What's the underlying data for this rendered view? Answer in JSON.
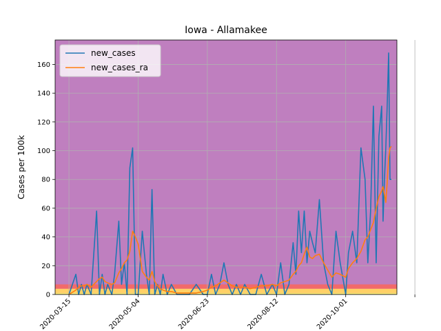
{
  "chart_data": {
    "type": "line",
    "title": "Iowa - Allamakee",
    "xlabel": "",
    "ylabel": "Cases per 100k",
    "xlim": [
      "2020-03-05",
      "2020-11-07"
    ],
    "ylim": [
      0,
      177
    ],
    "x_ticks": [
      "2020-03-15",
      "2020-05-04",
      "2020-06-23",
      "2020-08-12",
      "2020-10-01",
      ""
    ],
    "y_ticks": [
      0,
      20,
      40,
      60,
      80,
      100,
      120,
      140,
      160
    ],
    "grid": true,
    "legend_position": "top-left",
    "background_color": "#bf7fbf",
    "risk_bands": [
      {
        "from": 0,
        "to": 1,
        "color": "#ffef7a"
      },
      {
        "from": 1,
        "to": 4,
        "color": "#ffd166"
      },
      {
        "from": 4,
        "to": 7,
        "color": "#f26a6a"
      }
    ],
    "x": [
      "2020-03-15",
      "2020-03-20",
      "2020-03-22",
      "2020-03-24",
      "2020-03-26",
      "2020-03-28",
      "2020-03-31",
      "2020-04-04",
      "2020-04-06",
      "2020-04-08",
      "2020-04-10",
      "2020-04-12",
      "2020-04-15",
      "2020-04-17",
      "2020-04-20",
      "2020-04-22",
      "2020-04-24",
      "2020-04-26",
      "2020-04-28",
      "2020-04-30",
      "2020-05-02",
      "2020-05-04",
      "2020-05-07",
      "2020-05-10",
      "2020-05-12",
      "2020-05-14",
      "2020-05-16",
      "2020-05-18",
      "2020-05-20",
      "2020-05-22",
      "2020-05-25",
      "2020-05-28",
      "2020-06-01",
      "2020-06-05",
      "2020-06-10",
      "2020-06-15",
      "2020-06-20",
      "2020-06-23",
      "2020-06-26",
      "2020-06-29",
      "2020-07-02",
      "2020-07-05",
      "2020-07-08",
      "2020-07-11",
      "2020-07-14",
      "2020-07-17",
      "2020-07-20",
      "2020-07-24",
      "2020-07-28",
      "2020-08-01",
      "2020-08-05",
      "2020-08-09",
      "2020-08-12",
      "2020-08-15",
      "2020-08-18",
      "2020-08-21",
      "2020-08-24",
      "2020-08-26",
      "2020-08-28",
      "2020-08-30",
      "2020-09-01",
      "2020-09-03",
      "2020-09-05",
      "2020-09-07",
      "2020-09-09",
      "2020-09-12",
      "2020-09-15",
      "2020-09-18",
      "2020-09-21",
      "2020-09-24",
      "2020-09-27",
      "2020-10-01",
      "2020-10-03",
      "2020-10-06",
      "2020-10-09",
      "2020-10-12",
      "2020-10-15",
      "2020-10-17",
      "2020-10-19",
      "2020-10-21",
      "2020-10-23",
      "2020-10-25",
      "2020-10-27",
      "2020-10-28",
      "2020-10-29",
      "2020-10-30",
      "2020-10-31",
      "2020-11-01",
      "2020-11-02",
      "2020-11-03"
    ],
    "series": [
      {
        "name": "new_cases",
        "color": "#1f77b4",
        "values": [
          0,
          14,
          0,
          7,
          0,
          7,
          0,
          58,
          0,
          14,
          0,
          7,
          0,
          14,
          51,
          7,
          22,
          0,
          88,
          102,
          0,
          0,
          44,
          14,
          0,
          73,
          0,
          7,
          0,
          14,
          0,
          7,
          0,
          0,
          0,
          7,
          0,
          0,
          14,
          0,
          7,
          22,
          7,
          0,
          7,
          0,
          7,
          0,
          0,
          14,
          0,
          7,
          0,
          22,
          0,
          7,
          36,
          14,
          58,
          29,
          58,
          22,
          44,
          36,
          29,
          66,
          22,
          7,
          0,
          44,
          22,
          0,
          29,
          44,
          22,
          102,
          80,
          22,
          58,
          131,
          22,
          110,
          131,
          51,
          80,
          102,
          131,
          168,
          80,
          80
        ]
      },
      {
        "name": "new_cases_ra",
        "color": "#ff7f0e",
        "values": [
          0,
          3,
          5,
          6,
          6,
          7,
          5,
          9,
          11,
          12,
          9,
          8,
          7,
          8,
          15,
          18,
          22,
          24,
          30,
          44,
          40,
          35,
          16,
          12,
          10,
          16,
          9,
          6,
          4,
          3,
          2,
          2,
          1,
          1,
          1,
          1,
          2,
          3,
          5,
          6,
          8,
          10,
          8,
          6,
          5,
          5,
          5,
          4,
          5,
          6,
          6,
          7,
          6,
          8,
          9,
          10,
          14,
          16,
          20,
          22,
          28,
          33,
          26,
          25,
          27,
          28,
          22,
          17,
          12,
          15,
          14,
          12,
          18,
          22,
          25,
          30,
          38,
          40,
          45,
          50,
          60,
          68,
          72,
          75,
          70,
          64,
          78,
          95,
          102,
          103
        ]
      }
    ]
  }
}
